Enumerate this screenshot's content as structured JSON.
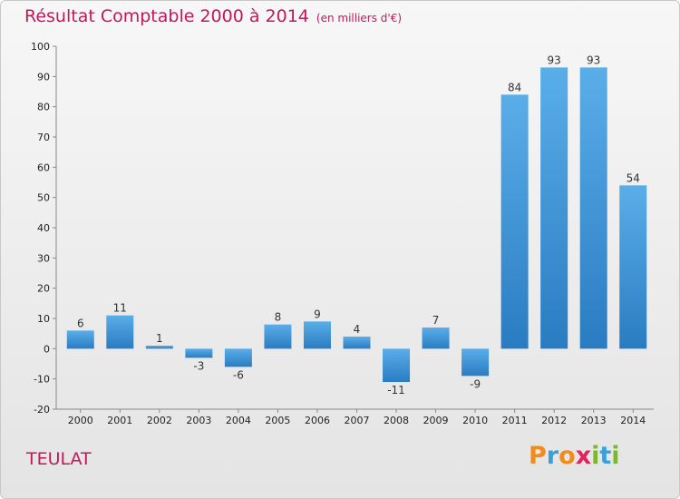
{
  "chart_data": {
    "type": "bar",
    "title": "Résultat Comptable 2000 à 2014",
    "subtitle": "(en milliers d'€)",
    "categories": [
      "2000",
      "2001",
      "2002",
      "2003",
      "2004",
      "2005",
      "2006",
      "2007",
      "2008",
      "2009",
      "2010",
      "2011",
      "2012",
      "2013",
      "2014"
    ],
    "values": [
      6,
      11,
      1,
      -3,
      -6,
      8,
      9,
      4,
      -11,
      7,
      -9,
      84,
      93,
      93,
      54
    ],
    "ylim": [
      -20,
      100
    ],
    "yticks": [
      -20,
      -10,
      0,
      10,
      20,
      30,
      40,
      50,
      60,
      70,
      80,
      90,
      100
    ],
    "xlabel": "",
    "ylabel": "",
    "grid": false,
    "bar_color": "#3a8fd6"
  },
  "commune": "TEULAT",
  "logo": {
    "text": "Proxiti",
    "letters": [
      {
        "ch": "P",
        "color": "#f08c1e"
      },
      {
        "ch": "r",
        "color": "#3aa0dc"
      },
      {
        "ch": "o",
        "color": "#f08c1e"
      },
      {
        "ch": "x",
        "color": "#e0245e"
      },
      {
        "ch": "i",
        "color": "#7cb82f"
      },
      {
        "ch": "t",
        "color": "#3aa0dc"
      },
      {
        "ch": "i",
        "color": "#7cb82f"
      }
    ]
  }
}
